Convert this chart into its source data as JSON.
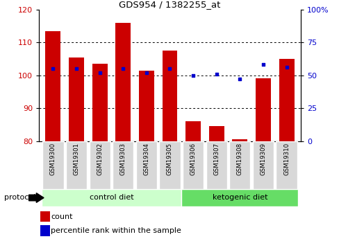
{
  "title": "GDS954 / 1382255_at",
  "samples": [
    "GSM19300",
    "GSM19301",
    "GSM19302",
    "GSM19303",
    "GSM19304",
    "GSM19305",
    "GSM19306",
    "GSM19307",
    "GSM19308",
    "GSM19309",
    "GSM19310"
  ],
  "counts": [
    113.5,
    105.5,
    103.5,
    116.0,
    101.5,
    107.5,
    86.0,
    84.5,
    80.5,
    99.0,
    105.0
  ],
  "percentile_ranks": [
    55,
    55,
    52,
    55,
    52,
    55,
    50,
    51,
    47,
    58,
    56
  ],
  "ylim_left": [
    80,
    120
  ],
  "ylim_right": [
    0,
    100
  ],
  "yticks_left": [
    80,
    90,
    100,
    110,
    120
  ],
  "yticks_right": [
    0,
    25,
    50,
    75,
    100
  ],
  "ytick_labels_right": [
    "0",
    "25",
    "50",
    "75",
    "100%"
  ],
  "bar_color": "#cc0000",
  "dot_color": "#0000cc",
  "grid_lines_at": [
    90,
    100,
    110
  ],
  "protocol_groups": [
    {
      "label": "control diet",
      "indices": [
        0,
        1,
        2,
        3,
        4,
        5
      ],
      "color": "#ccffcc"
    },
    {
      "label": "ketogenic diet",
      "indices": [
        6,
        7,
        8,
        9,
        10
      ],
      "color": "#66dd66"
    }
  ],
  "protocol_label": "protocol",
  "legend_count_label": "count",
  "legend_percentile_label": "percentile rank within the sample",
  "tick_bg_color": "#d8d8d8",
  "bar_edge_color": "none",
  "fig_width": 4.89,
  "fig_height": 3.45
}
